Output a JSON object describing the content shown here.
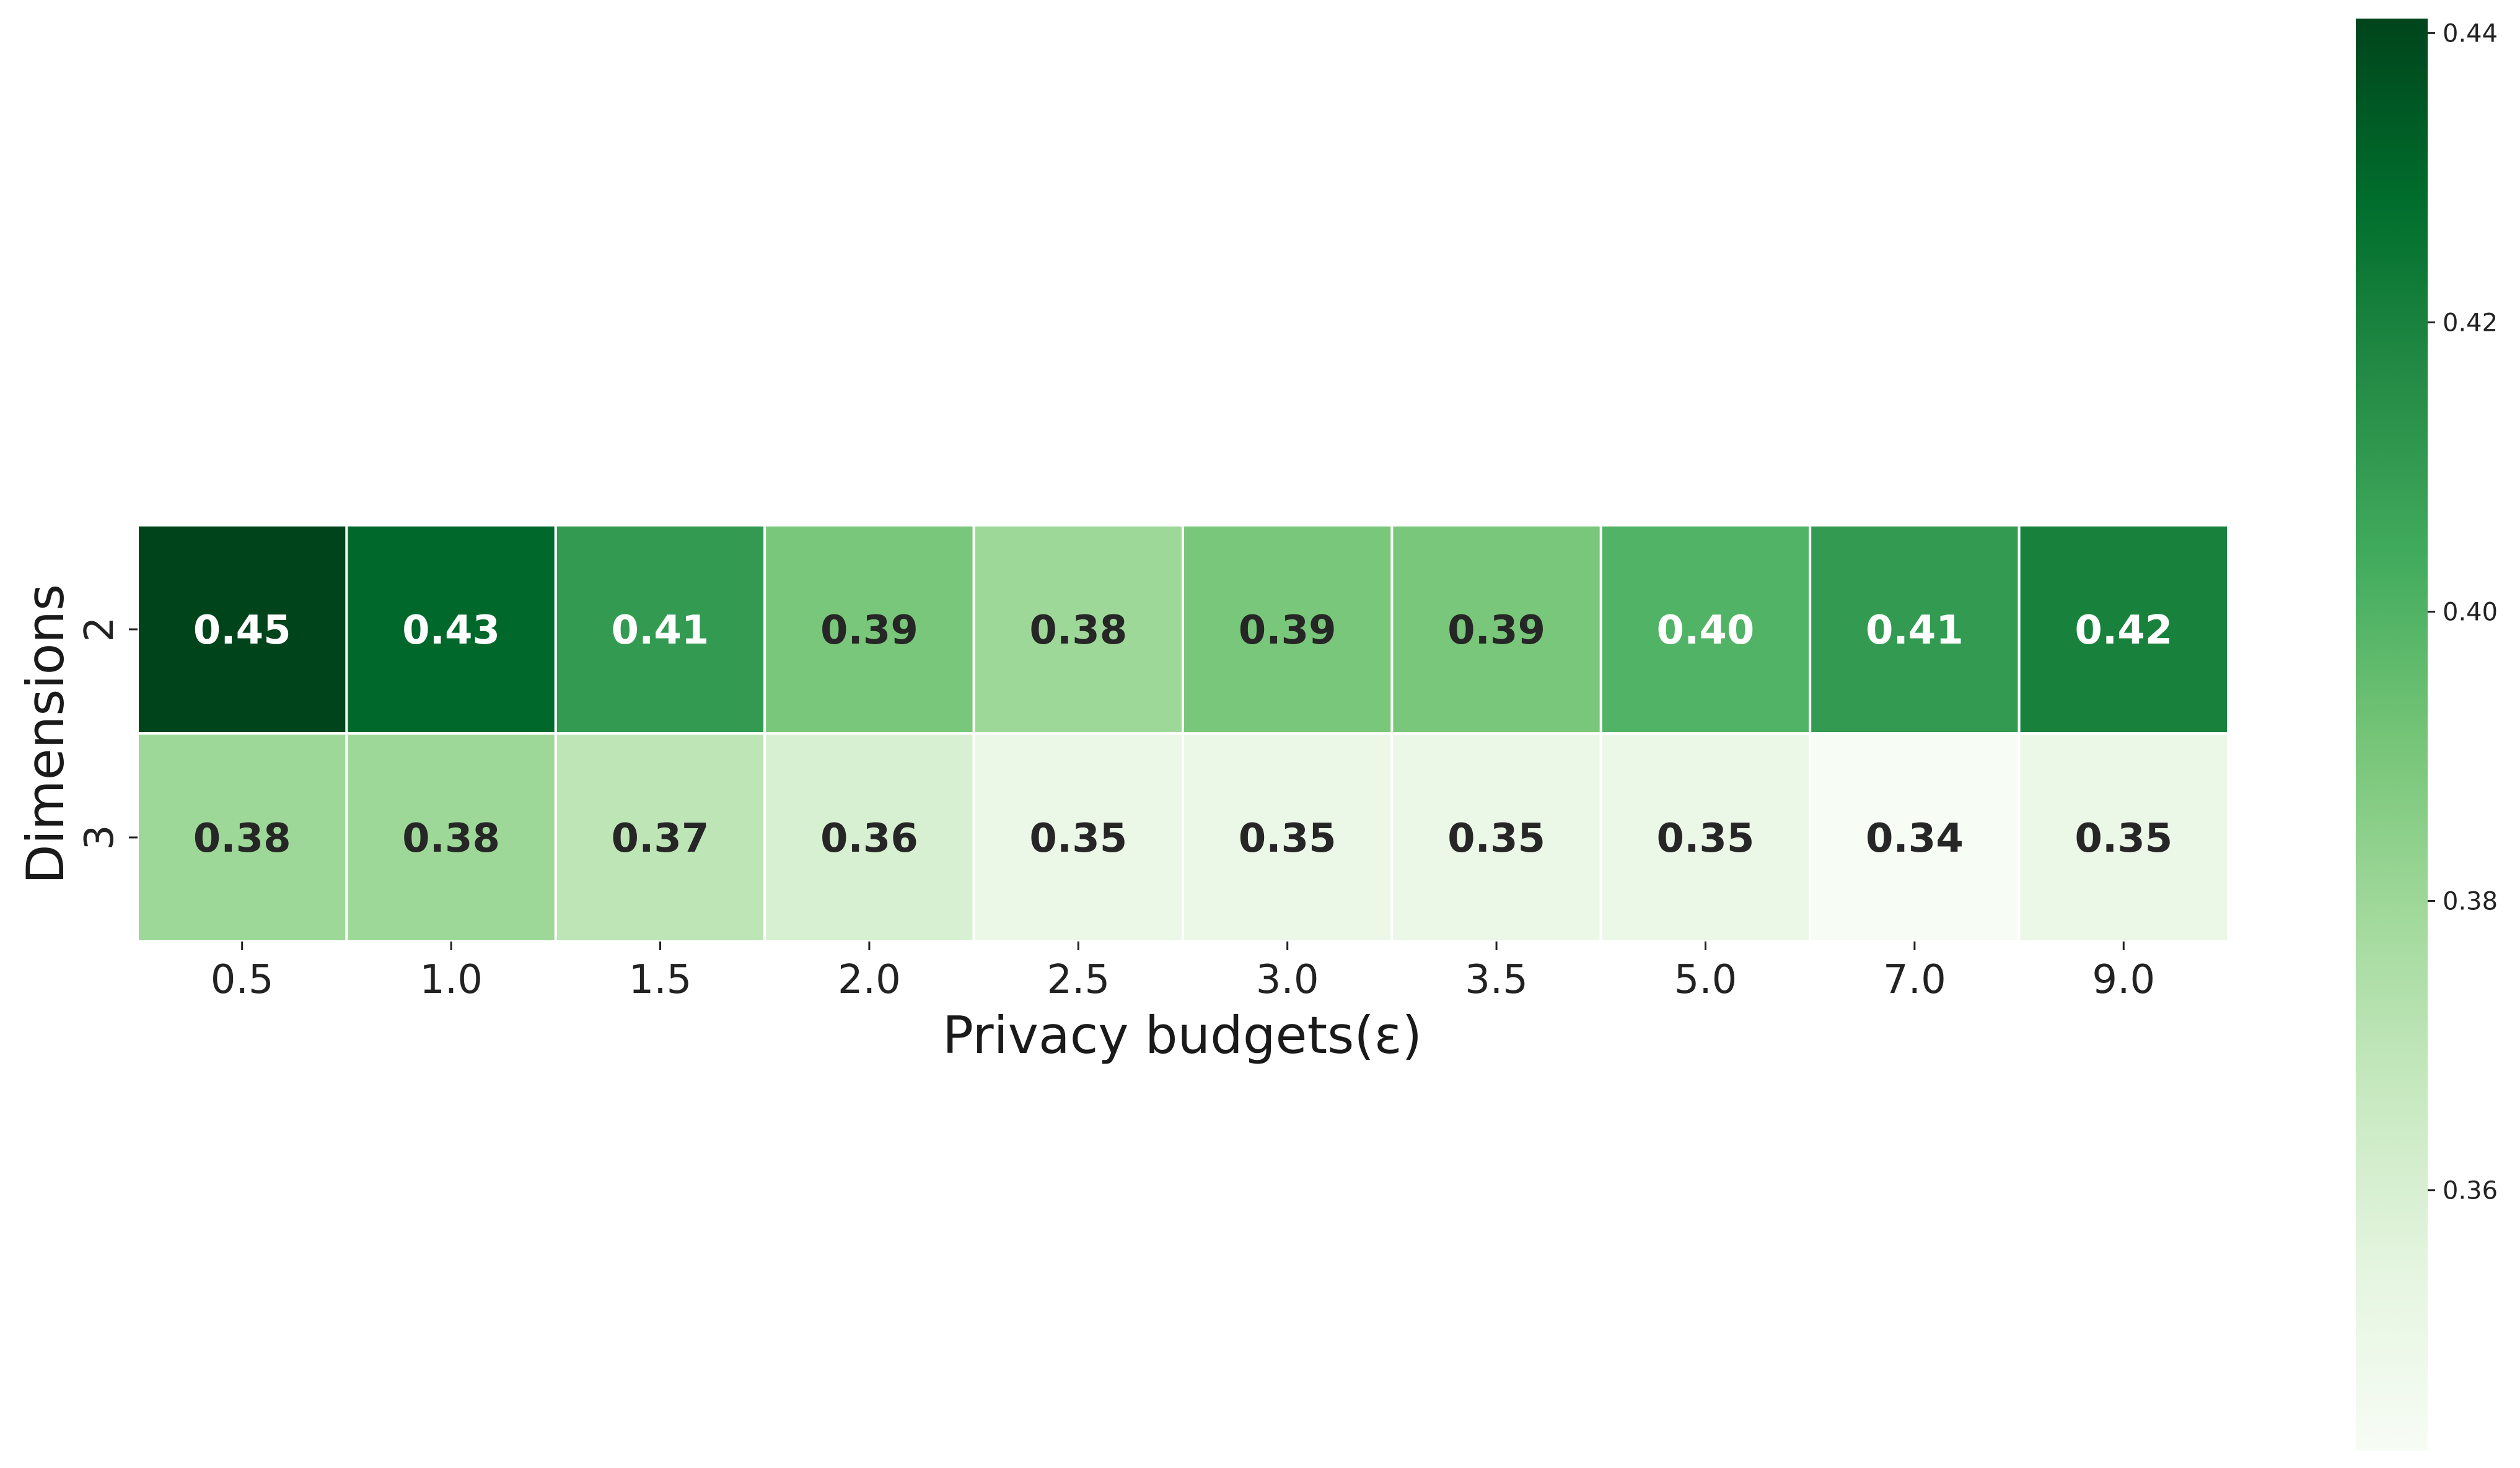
{
  "chart_data": {
    "type": "heatmap",
    "xlabel": "Privacy budgets(ε)",
    "ylabel": "Dimensions",
    "x_categories": [
      "0.5",
      "1.0",
      "1.5",
      "2.0",
      "2.5",
      "3.0",
      "3.5",
      "5.0",
      "7.0",
      "9.0"
    ],
    "y_categories": [
      "2",
      "3"
    ],
    "values": [
      [
        0.45,
        0.43,
        0.41,
        0.39,
        0.38,
        0.39,
        0.39,
        0.4,
        0.41,
        0.42
      ],
      [
        0.38,
        0.38,
        0.37,
        0.36,
        0.35,
        0.35,
        0.35,
        0.35,
        0.34,
        0.35
      ]
    ],
    "value_labels": [
      [
        "0.45",
        "0.43",
        "0.41",
        "0.39",
        "0.38",
        "0.39",
        "0.39",
        "0.40",
        "0.41",
        "0.42"
      ],
      [
        "0.38",
        "0.38",
        "0.37",
        "0.36",
        "0.35",
        "0.35",
        "0.35",
        "0.35",
        "0.34",
        "0.35"
      ]
    ],
    "colormap": "Greens",
    "colorbar": {
      "vmin": 0.342,
      "vmax": 0.441,
      "ticks": [
        "0.36",
        "0.38",
        "0.40",
        "0.42",
        "0.44"
      ],
      "tick_values": [
        0.36,
        0.38,
        0.4,
        0.42,
        0.44
      ]
    }
  }
}
